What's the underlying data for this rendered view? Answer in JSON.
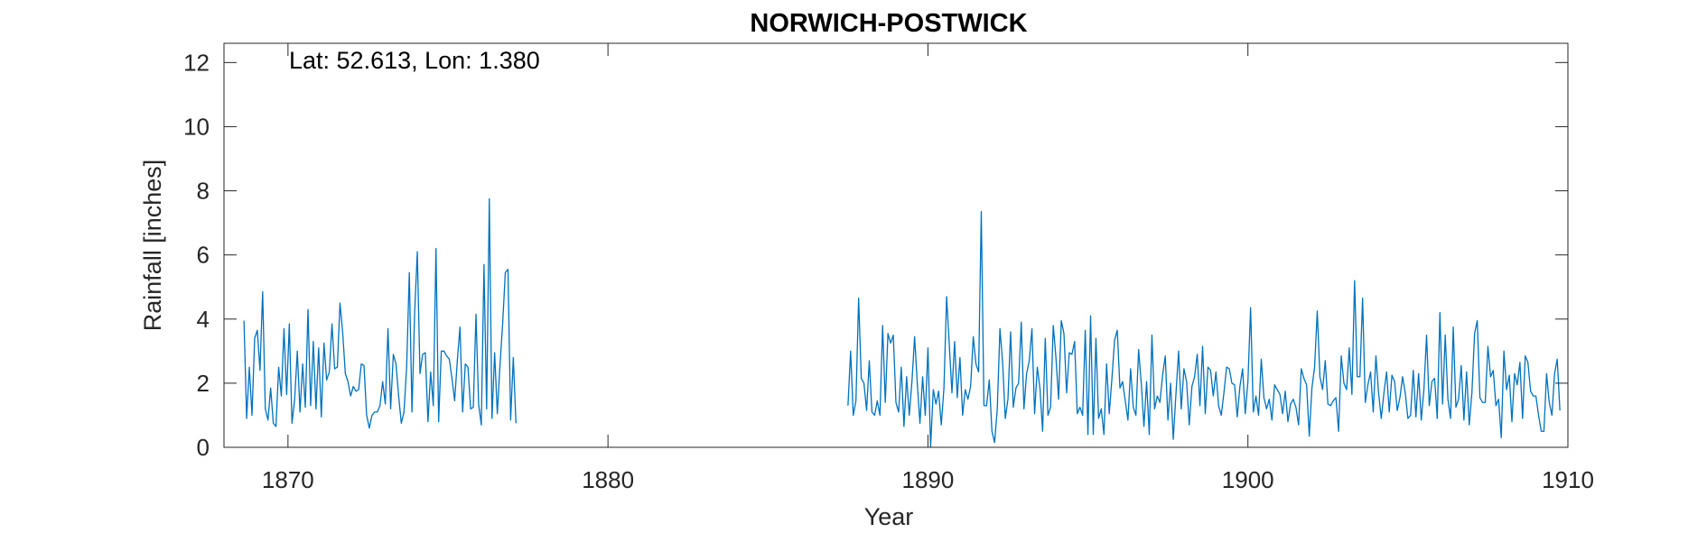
{
  "chart_data": {
    "type": "line",
    "title": "NORWICH-POSTWICK",
    "xlabel": "Year",
    "ylabel": "Rainfall [inches]",
    "annotation": "Lat: 52.613, Lon: 1.380",
    "xlim": [
      1868,
      1910
    ],
    "ylim": [
      0,
      12.6
    ],
    "xticks": [
      1870,
      1880,
      1890,
      1900,
      1910
    ],
    "yticks": [
      0,
      2,
      4,
      6,
      8,
      10,
      12
    ],
    "grid": false,
    "line_color": "#0072BD",
    "axis_color": "#262626",
    "series": [
      {
        "segments": [
          {
            "start_year": 1868.625,
            "values": [
              3.95,
              0.9,
              2.5,
              1.0,
              3.4,
              3.65,
              2.4,
              4.85,
              1.2,
              0.85,
              1.85,
              0.75,
              0.65,
              2.5,
              1.6,
              3.7,
              1.65,
              3.85,
              0.75,
              1.5,
              3.0,
              1.1,
              2.6,
              1.25,
              4.3,
              1.3,
              3.3,
              1.2,
              3.1,
              0.95,
              3.25,
              2.1,
              2.35,
              3.85,
              2.45,
              2.5,
              4.5,
              3.6,
              2.3,
              2.05,
              1.6,
              1.9,
              1.75,
              1.8,
              2.6,
              2.55,
              1.0,
              0.6,
              1.0,
              1.1,
              1.1,
              1.3,
              2.05,
              1.35,
              3.7,
              1.2,
              2.9,
              2.6,
              1.6,
              0.75,
              1.1,
              2.5,
              5.45,
              1.1,
              4.2,
              6.1,
              2.3,
              2.9,
              2.95,
              0.8,
              2.35,
              1.3,
              6.2,
              0.8,
              3.0,
              3.0,
              2.85,
              2.75,
              2.15,
              1.45,
              2.7,
              3.75,
              1.1,
              2.6,
              2.5,
              1.2,
              1.25,
              4.15,
              1.35,
              0.7,
              5.7,
              1.2,
              7.75,
              0.9,
              2.95,
              1.05,
              2.55,
              3.85,
              5.45,
              5.55,
              0.85,
              2.8,
              0.75
            ]
          },
          {
            "start_year": 1887.5,
            "values": [
              1.3,
              3.0,
              1.0,
              1.45,
              4.65,
              2.15,
              2.0,
              1.15,
              2.7,
              1.1,
              1.0,
              1.45,
              1.0,
              3.8,
              1.4,
              3.55,
              3.25,
              3.5,
              1.4,
              1.1,
              2.5,
              0.65,
              2.2,
              1.0,
              2.05,
              3.45,
              2.0,
              0.75,
              2.2,
              1.0,
              3.1,
              0.0,
              1.8,
              1.35,
              1.75,
              0.7,
              1.85,
              4.7,
              3.2,
              1.7,
              3.3,
              1.55,
              2.8,
              1.0,
              1.8,
              1.5,
              1.9,
              3.45,
              2.6,
              2.35,
              7.35,
              1.3,
              1.3,
              2.1,
              0.5,
              0.15,
              1.2,
              3.7,
              2.65,
              0.9,
              1.5,
              3.6,
              1.25,
              1.85,
              2.0,
              3.9,
              1.2,
              2.3,
              2.7,
              3.7,
              1.05,
              2.5,
              1.85,
              0.5,
              3.4,
              1.0,
              1.25,
              3.8,
              2.8,
              1.5,
              3.95,
              3.55,
              1.7,
              2.95,
              2.9,
              3.3,
              1.05,
              1.25,
              1.0,
              3.65,
              0.4,
              4.1,
              0.4,
              3.4,
              0.9,
              1.2,
              0.4,
              2.6,
              1.05,
              2.15,
              3.35,
              3.65,
              1.85,
              2.05,
              1.45,
              0.85,
              2.45,
              1.25,
              1.0,
              3.05,
              2.0,
              0.65,
              2.05,
              0.4,
              3.5,
              1.2,
              1.6,
              1.4,
              2.25,
              2.85,
              0.85,
              2.0,
              0.25,
              1.65,
              3.0,
              1.2,
              2.45,
              2.05,
              0.7,
              1.9,
              2.2,
              2.9,
              1.3,
              3.15,
              1.05,
              2.5,
              2.4,
              1.6,
              2.35,
              1.3,
              1.0,
              1.7,
              2.5,
              2.45,
              2.0,
              1.95,
              0.95,
              1.9,
              2.45,
              1.05,
              2.05,
              4.35,
              1.1,
              1.6,
              1.0,
              2.75,
              1.55,
              1.2,
              1.5,
              0.85,
              1.95,
              1.8,
              1.65,
              1.05,
              1.75,
              0.8,
              1.35,
              1.5,
              1.25,
              0.7,
              2.45,
              2.15,
              1.95,
              0.35,
              1.85,
              2.5,
              4.25,
              2.2,
              1.8,
              2.7,
              1.35,
              1.3,
              1.45,
              1.55,
              0.5,
              2.85,
              2.0,
              1.8,
              3.1,
              1.65,
              5.2,
              2.2,
              2.2,
              4.65,
              1.4,
              1.95,
              2.35,
              1.1,
              2.85,
              1.7,
              0.9,
              1.7,
              2.35,
              1.1,
              2.25,
              2.05,
              1.15,
              1.55,
              2.2,
              1.7,
              0.9,
              1.0,
              2.4,
              0.95,
              2.3,
              0.85,
              1.8,
              3.5,
              1.3,
              2.05,
              2.15,
              0.9,
              4.2,
              1.35,
              3.5,
              1.5,
              0.9,
              3.75,
              1.25,
              1.5,
              2.55,
              0.85,
              2.35,
              0.7,
              1.7,
              3.55,
              3.95,
              1.55,
              1.4,
              1.4,
              3.15,
              2.2,
              2.4,
              1.3,
              1.5,
              0.3,
              3.0,
              1.8,
              2.25,
              0.8,
              2.3,
              1.95,
              2.65,
              0.9,
              2.85,
              2.65,
              1.75,
              1.6,
              1.6,
              1.0,
              0.5,
              0.5,
              2.3,
              1.4,
              1.0,
              2.3,
              2.75,
              1.15
            ]
          }
        ]
      }
    ]
  }
}
